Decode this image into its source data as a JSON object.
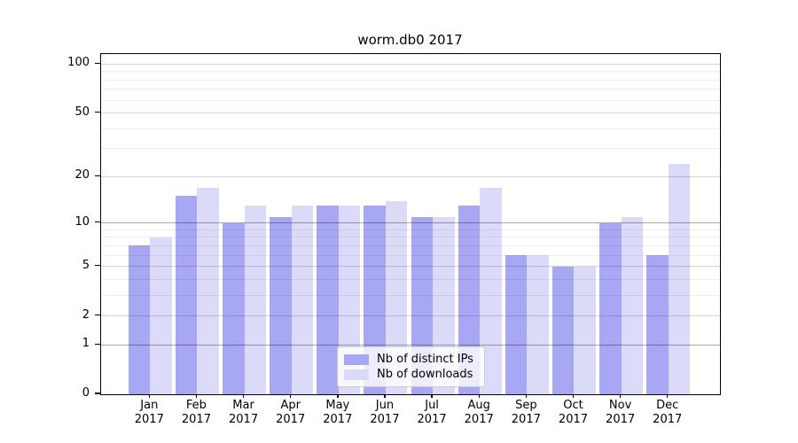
{
  "chart_data": {
    "type": "bar",
    "title": "worm.db0 2017",
    "categories": [
      "Jan",
      "Feb",
      "Mar",
      "Apr",
      "May",
      "Jun",
      "Jul",
      "Aug",
      "Sep",
      "Oct",
      "Nov",
      "Dec"
    ],
    "category_year": "2017",
    "series": [
      {
        "name": "Nb of distinct IPs",
        "color": "#a7a7f3",
        "values": [
          7,
          15,
          10,
          11,
          13,
          13,
          11,
          13,
          6,
          5,
          10,
          6
        ]
      },
      {
        "name": "Nb of downloads",
        "color": "#dbdbf9",
        "values": [
          8,
          17,
          13,
          13,
          13,
          14,
          11,
          17,
          6,
          5,
          11,
          24
        ]
      }
    ],
    "yscale": "log1p",
    "ylim": [
      0,
      115
    ],
    "ytick_labels": [
      "100",
      "50",
      "20",
      "10",
      "5",
      "2",
      "1",
      "0"
    ],
    "ytick_values": [
      100,
      50,
      20,
      10,
      5,
      2,
      1,
      0
    ],
    "grid": "both",
    "grid_minor_values": [
      3,
      4,
      6,
      7,
      8,
      9,
      30,
      40,
      60,
      70,
      80,
      90
    ],
    "grid_mid_values": [
      2,
      5,
      20,
      50,
      100
    ],
    "grid_major_values": [
      1,
      10
    ],
    "legend_position": "lower center",
    "xlabel": "",
    "ylabel": ""
  },
  "colors": {
    "grid_minor": "rgba(0,0,0,0.065)",
    "grid_mid": "rgba(0,0,0,0.16)",
    "grid_major": "rgba(0,0,0,0.34)",
    "axis": "#000000",
    "background": "#ffffff"
  }
}
